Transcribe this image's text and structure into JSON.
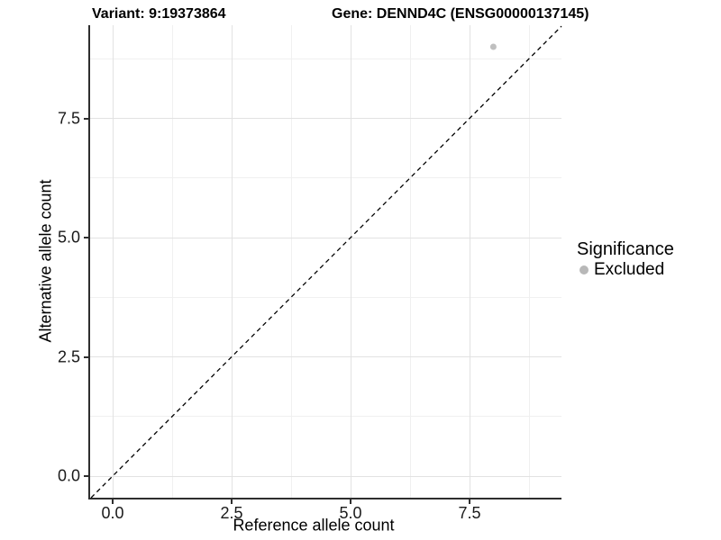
{
  "titles": {
    "variant": "Variant: 9:19373864",
    "gene": "Gene: DENND4C (ENSG00000137145)"
  },
  "chart_data": {
    "type": "scatter",
    "title_left": "Variant: 9:19373864",
    "title_right": "Gene: DENND4C (ENSG00000137145)",
    "xlabel": "Reference allele count",
    "ylabel": "Alternative allele count",
    "xlim": [
      -0.47,
      9.45
    ],
    "ylim": [
      -0.47,
      9.45
    ],
    "x_ticks": [
      0,
      2.5,
      5,
      7.5
    ],
    "y_ticks": [
      0,
      2.5,
      5,
      7.5
    ],
    "minor_ticks": [
      1.25,
      3.75,
      6.25,
      8.75
    ],
    "grid": "major and minor gridlines, light gray on white, left and bottom axis lines only",
    "series": [
      {
        "name": "Excluded",
        "marker": "circle",
        "color": "#bfbfbf",
        "points": [
          {
            "x": 8,
            "y": 9
          }
        ]
      }
    ],
    "reference_line": {
      "kind": "identity y=x",
      "style": "dashed",
      "color": "#000000"
    },
    "legend": {
      "title": "Significance",
      "position": "right-middle",
      "items": [
        {
          "label": "Excluded",
          "marker": "circle",
          "marker_color": "#b8b8b8"
        }
      ]
    }
  },
  "colors": {
    "background": "#ffffff",
    "text": "#000000",
    "axis_line": "#2e2e2e",
    "grid_major": "#e2e2e2",
    "grid_minor": "#f0f0f0",
    "point": "#bfbfbf",
    "legend_marker": "#b8b8b8",
    "dashed_line": "#000000"
  }
}
